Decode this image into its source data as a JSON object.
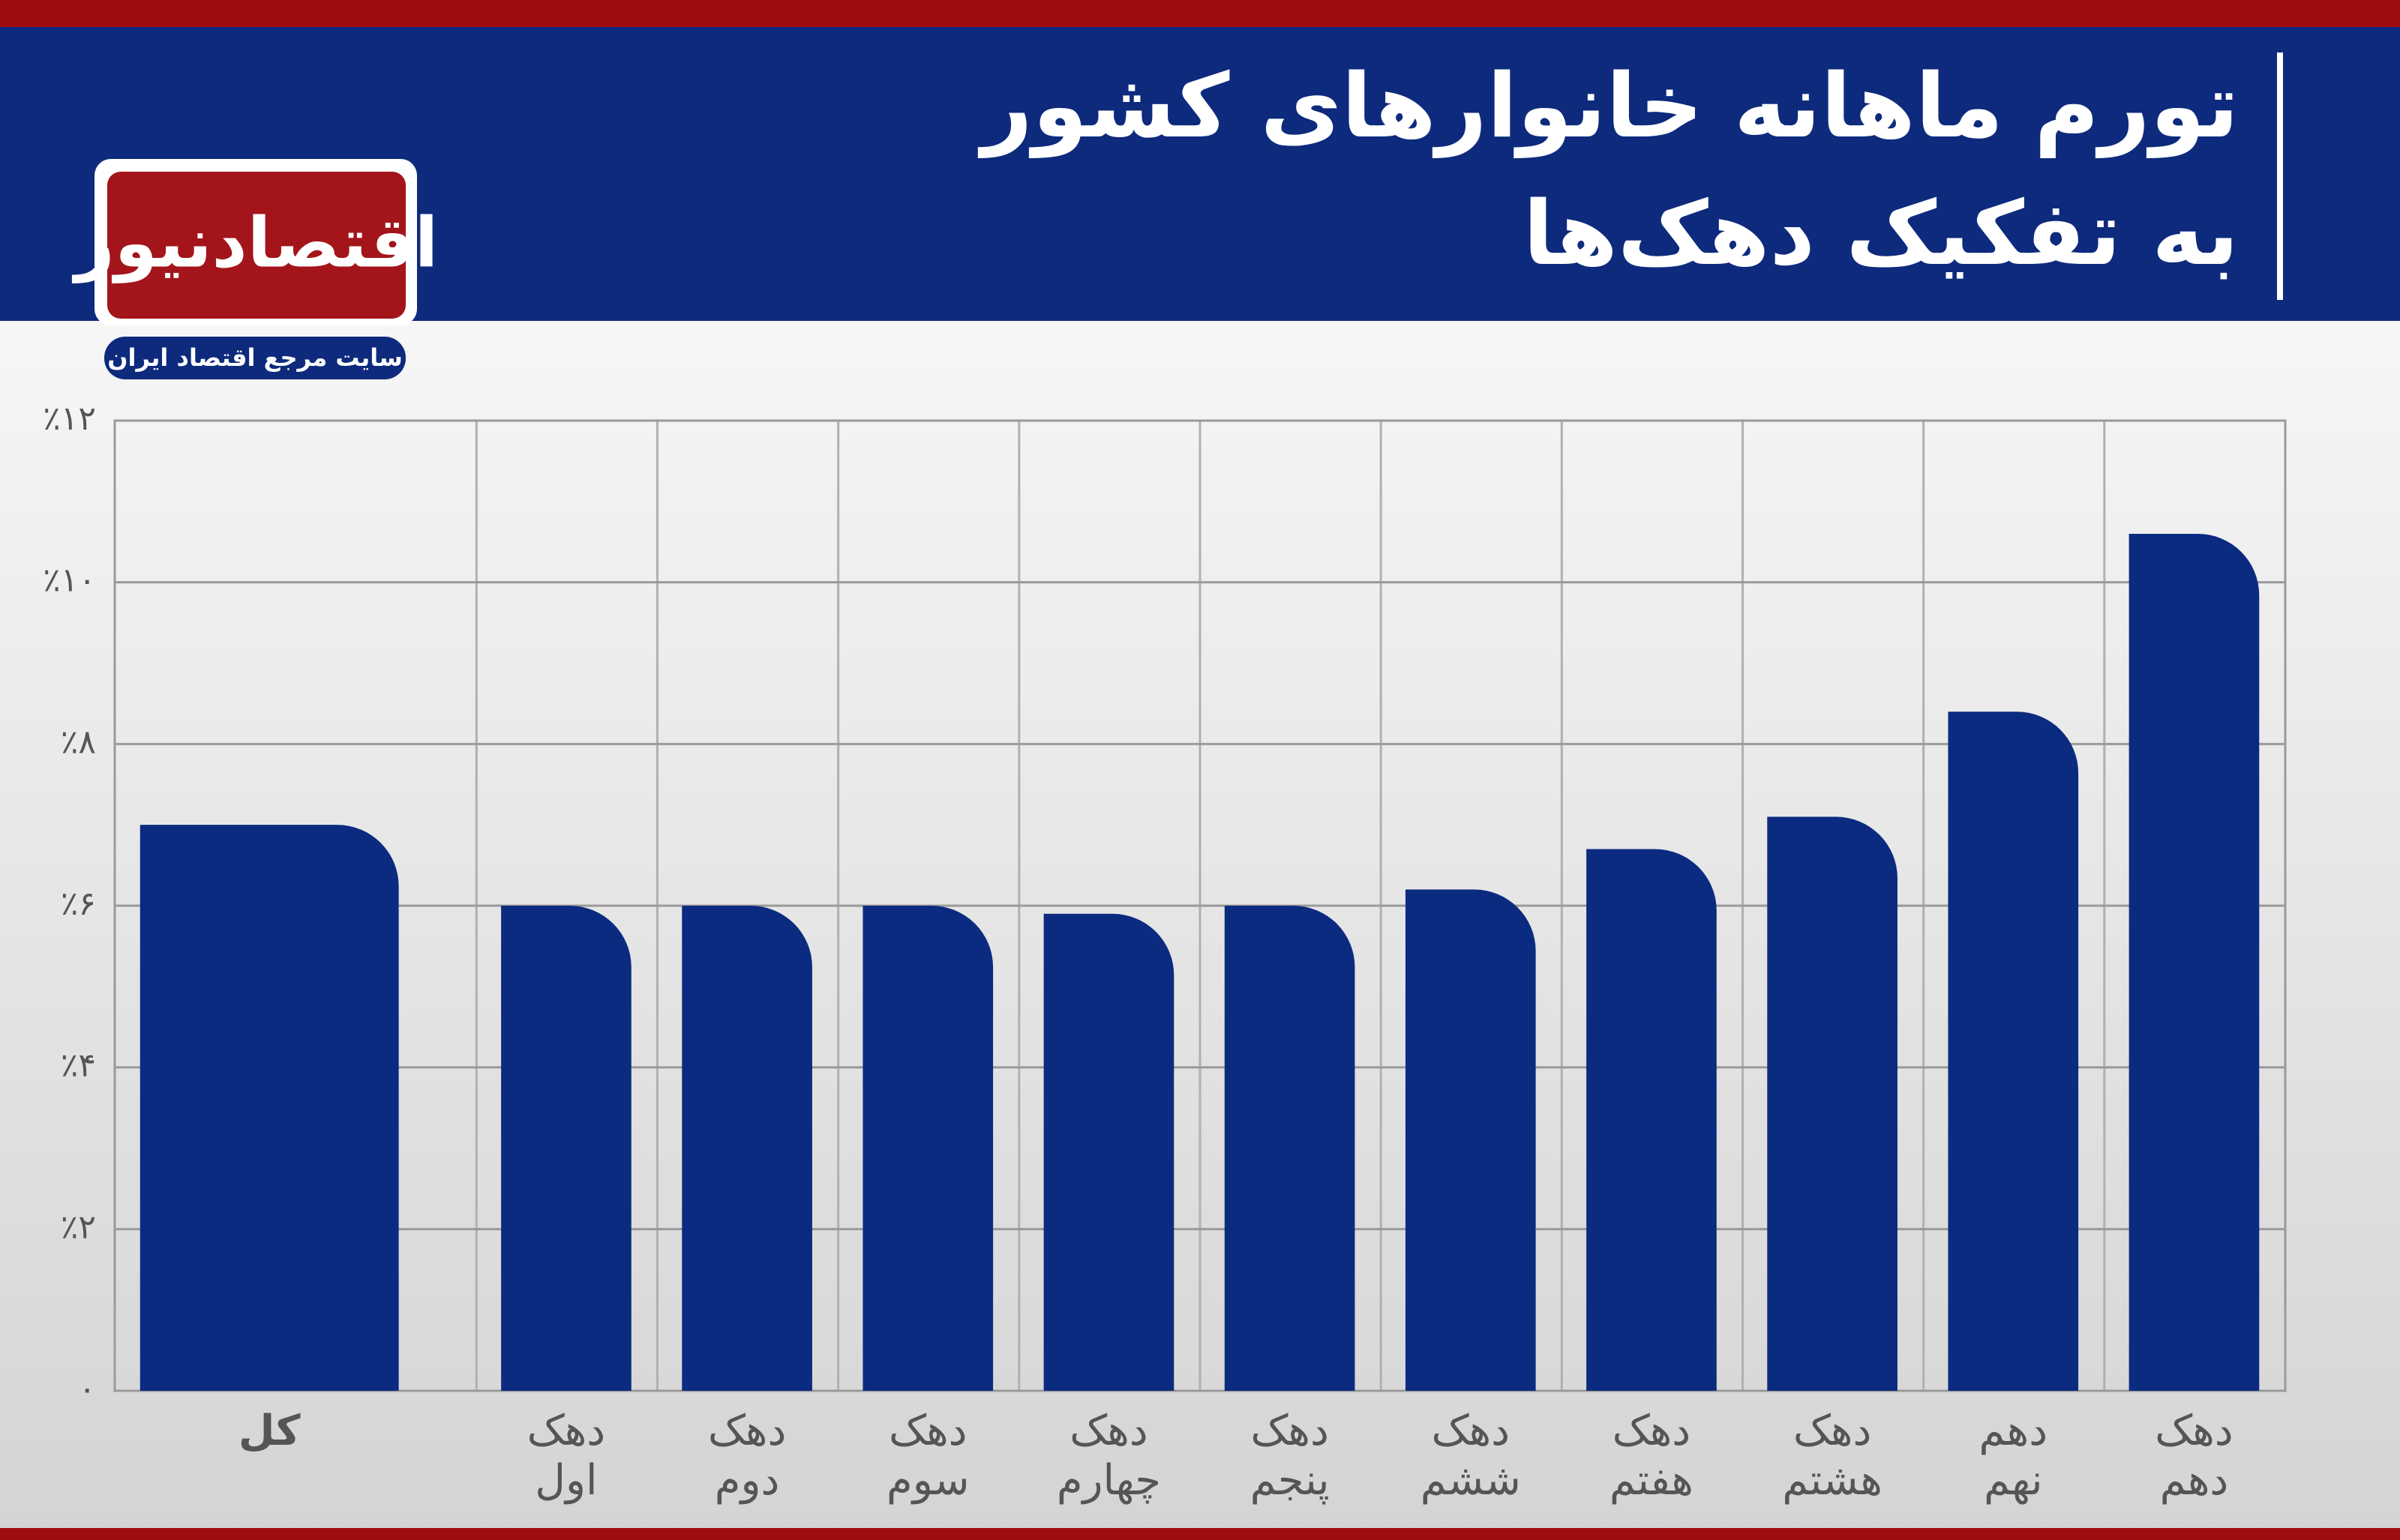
{
  "chart_data": {
    "type": "bar",
    "title": "تورم ماهانه خانوارهای کشور",
    "subtitle": "به تفکیک دهک‌ها",
    "categories": [
      [
        "کل"
      ],
      [
        "دهک",
        "اول"
      ],
      [
        "دهک",
        "دوم"
      ],
      [
        "دهک",
        "سوم"
      ],
      [
        "دهک",
        "چهارم"
      ],
      [
        "دهک",
        "پنجم"
      ],
      [
        "دهک",
        "ششم"
      ],
      [
        "دهک",
        "هفتم"
      ],
      [
        "دهک",
        "هشتم"
      ],
      [
        "دهم",
        "نهم"
      ],
      [
        "دهک",
        "دهم"
      ]
    ],
    "values": [
      7.0,
      6.0,
      6.0,
      6.0,
      5.9,
      6.0,
      6.2,
      6.7,
      7.1,
      8.4,
      10.6
    ],
    "color": "#0b2b80",
    "ylim": [
      0,
      12
    ],
    "yticks": [
      {
        "value": 0,
        "label": "۰"
      },
      {
        "value": 2,
        "label": "٪۲"
      },
      {
        "value": 4,
        "label": "٪۴"
      },
      {
        "value": 6,
        "label": "٪۶"
      },
      {
        "value": 8,
        "label": "٪۸"
      },
      {
        "value": 10,
        "label": "٪۱۰"
      },
      {
        "value": 12,
        "label": "٪۱۲"
      }
    ],
    "grid": true
  },
  "logo": {
    "name": "اقتصادنیوز",
    "tagline": "سایت مرجع اقتصاد ایران"
  }
}
